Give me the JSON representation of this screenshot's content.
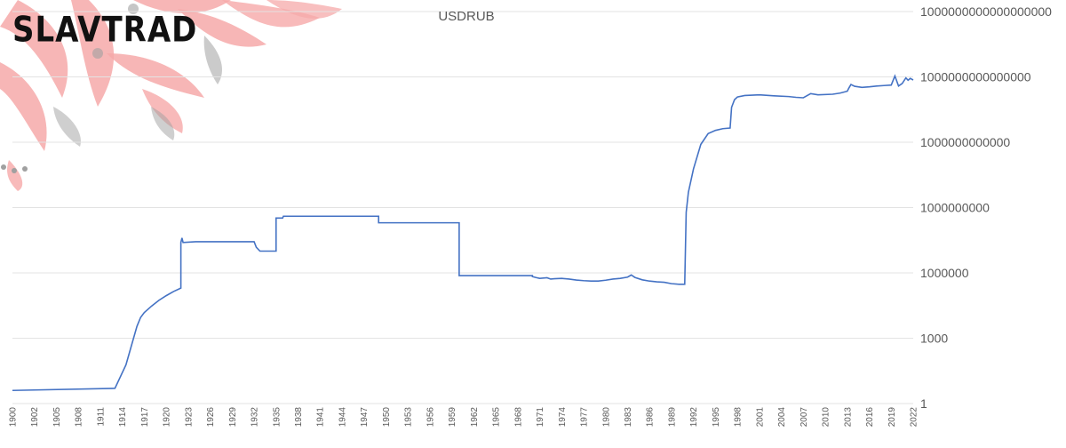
{
  "brand": {
    "logo_text": "SLAVTRAD"
  },
  "colors": {
    "line": "#4472c4",
    "grid": "#e3e3e3",
    "text": "#595959",
    "ornament_pink": "#f6a9a9",
    "ornament_grey": "#a0a0a0"
  },
  "chart_data": {
    "type": "line",
    "title": "USDRUB",
    "xlabel": "",
    "ylabel": "",
    "y_scale": "log",
    "y_axis_position": "right",
    "ylim": [
      1,
      1e+18
    ],
    "xlim": [
      1900,
      2023
    ],
    "grid": true,
    "yticks": [
      {
        "value": 1,
        "label": "1"
      },
      {
        "value": 1000,
        "label": "1000"
      },
      {
        "value": 1000000,
        "label": "1000000"
      },
      {
        "value": 1000000000,
        "label": "1000000000"
      },
      {
        "value": 1000000000000,
        "label": "1000000000000"
      },
      {
        "value": 1000000000000000,
        "label": "1000000000000000"
      },
      {
        "value": 1000000000000000000,
        "label": "1000000000000000000"
      }
    ],
    "xticks": [
      "1900",
      "1902",
      "1905",
      "1908",
      "1911",
      "1914",
      "1917",
      "1920",
      "1923",
      "1926",
      "1929",
      "1932",
      "1935",
      "1938",
      "1941",
      "1944",
      "1947",
      "1950",
      "1953",
      "1956",
      "1959",
      "1962",
      "1965",
      "1968",
      "1971",
      "1974",
      "1977",
      "1980",
      "1983",
      "1986",
      "1989",
      "1992",
      "1995",
      "1998",
      "2001",
      "2004",
      "2007",
      "2010",
      "2013",
      "2016",
      "2019",
      "2022"
    ],
    "series": [
      {
        "x": [
          1900,
          1914.0,
          1915.5,
          1916.2,
          1917.0,
          1917.5,
          1918.0,
          1919.0,
          1920.0,
          1921.0,
          1922.0,
          1923.0,
          1923.0,
          1923.15,
          1923.3,
          1925.0,
          1930.0,
          1933.0,
          1933.3,
          1933.8,
          1934.5,
          1936.0,
          1936.0,
          1936.9,
          1937.0,
          1937.5,
          1950.0,
          1950.0,
          1961.0,
          1961.0,
          1971.0,
          1971.0,
          1971.5,
          1972.0,
          1973.0,
          1973.5,
          1974.0,
          1975.0,
          1976.0,
          1977.0,
          1978.0,
          1979.0,
          1980.0,
          1981.0,
          1982.0,
          1983.0,
          1984.0,
          1984.5,
          1985.0,
          1986.0,
          1987.0,
          1988.0,
          1989.0,
          1990.0,
          1991.0,
          1991.8,
          1992.0,
          1992.3,
          1993.0,
          1994.0,
          1995.0,
          1996.0,
          1997.0,
          1998.0,
          1998.2,
          1998.6,
          1999.0,
          2000.0,
          2002.0,
          2004.0,
          2006.0,
          2007.0,
          2008.0,
          2009.0,
          2010.0,
          2012.0,
          2013.0,
          2014.0,
          2014.2,
          2014.5,
          2015.0,
          2016.0,
          2017.0,
          2018.0,
          2019.0,
          2020.0,
          2020.5,
          2021.0,
          2021.5,
          2022.0,
          2022.3,
          2022.6,
          2023.0
        ],
        "values": [
          4.0,
          5.0,
          60.0,
          400.0,
          3500.0,
          9000.0,
          15000.0,
          30000.0,
          55000.0,
          90000.0,
          140000.0,
          200000.0,
          25000000.0,
          40000000.0,
          25000000.0,
          27000000.0,
          27000000.0,
          27000000.0,
          15000000.0,
          10000000.0,
          10000000.0,
          10000000.0,
          330000000.0,
          330000000.0,
          400000000.0,
          400000000.0,
          400000000.0,
          200000000.0,
          200000000.0,
          750000.0,
          750000.0,
          680000.0,
          610000.0,
          560000.0,
          600000.0,
          520000.0,
          540000.0,
          560000.0,
          520000.0,
          470000.0,
          440000.0,
          420000.0,
          420000.0,
          460000.0,
          520000.0,
          560000.0,
          640000.0,
          800000.0,
          620000.0,
          480000.0,
          420000.0,
          390000.0,
          370000.0,
          320000.0,
          300000.0,
          300000.0,
          600000000.0,
          5000000000.0,
          60000000000.0,
          800000000000.0,
          2500000000000.0,
          3500000000000.0,
          4200000000000.0,
          4500000000000.0,
          40000000000000.0,
          90000000000000.0,
          120000000000000.0,
          140000000000000.0,
          150000000000000.0,
          135000000000000.0,
          125000000000000.0,
          115000000000000.0,
          110000000000000.0,
          170000000000000.0,
          150000000000000.0,
          160000000000000.0,
          180000000000000.0,
          220000000000000.0,
          300000000000000.0,
          450000000000000.0,
          370000000000000.0,
          330000000000000.0,
          350000000000000.0,
          380000000000000.0,
          400000000000000.0,
          420000000000000.0,
          1100000000000000.0,
          380000000000000.0,
          500000000000000.0,
          900000000000000.0,
          700000000000000.0,
          850000000000000.0,
          720000000000000.0
        ]
      }
    ]
  }
}
